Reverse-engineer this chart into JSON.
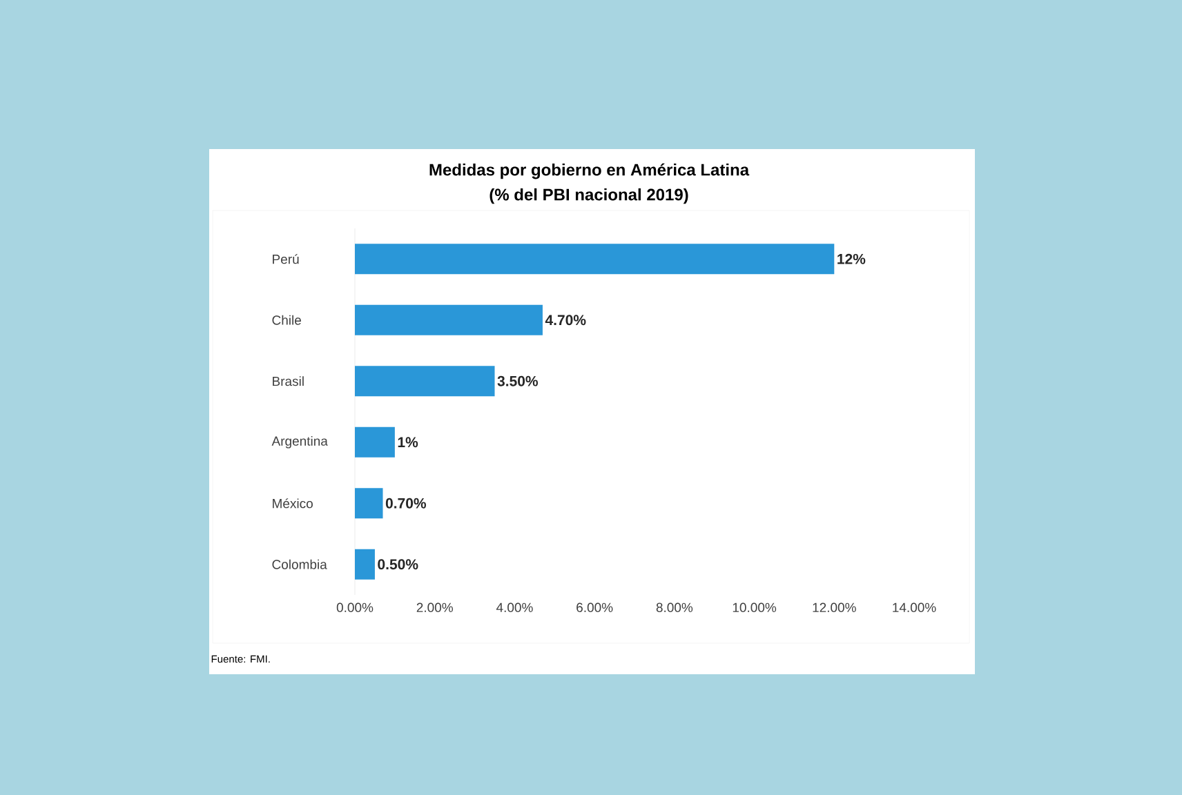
{
  "chart_data": {
    "type": "bar",
    "orientation": "horizontal",
    "title": "Medidas por gobierno en América Latina\n(% del PBI nacional 2019)",
    "categories": [
      "Perú",
      "Chile",
      "Brasil",
      "Argentina",
      "México",
      "Colombia"
    ],
    "values": [
      12,
      4.7,
      3.5,
      1,
      0.7,
      0.5
    ],
    "value_labels": [
      "12%",
      "4.70%",
      "3.50%",
      "1%",
      "0.70%",
      "0.50%"
    ],
    "color": "#2a97d8",
    "xlim": [
      0,
      14
    ],
    "xticks": [
      {
        "value": 0,
        "label": "0.00%"
      },
      {
        "value": 2,
        "label": "2.00%"
      },
      {
        "value": 4,
        "label": "4.00%"
      },
      {
        "value": 6,
        "label": "6.00%"
      },
      {
        "value": 8,
        "label": "8.00%"
      },
      {
        "value": 10,
        "label": "10.00%"
      },
      {
        "value": 12,
        "label": "12.00%"
      },
      {
        "value": 14,
        "label": "14.00%"
      }
    ],
    "annotations": [
      "Fuente: FMI."
    ]
  }
}
